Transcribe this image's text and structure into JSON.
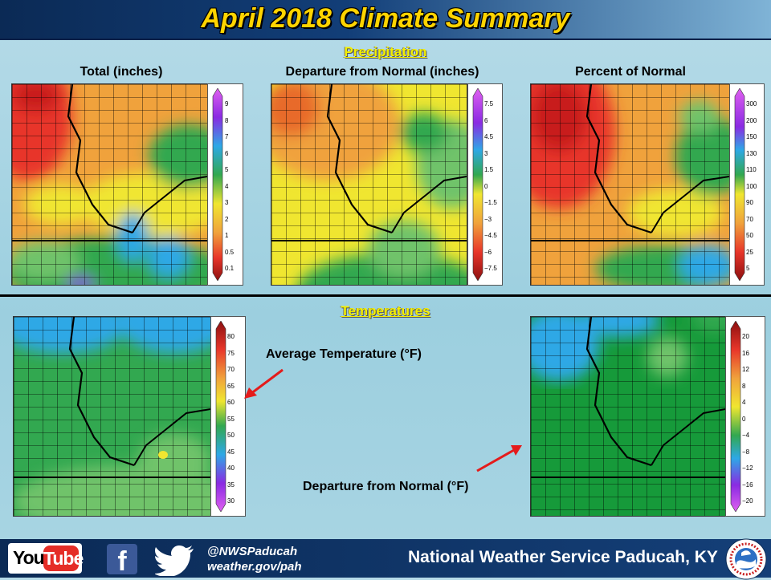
{
  "title": "April 2018 Climate Summary",
  "sections": {
    "precipitation": "Precipitation",
    "temperatures": "Temperatures"
  },
  "precip_panels": [
    {
      "label": "Total (inches)",
      "legend": [
        "9",
        "8",
        "7",
        "6",
        "5",
        "4",
        "3",
        "2",
        "1",
        "0.5",
        "0.1"
      ]
    },
    {
      "label": "Departure from Normal (inches)",
      "legend": [
        "7.5",
        "6",
        "4.5",
        "3",
        "1.5",
        "0",
        "−1.5",
        "−3",
        "−4.5",
        "−6",
        "−7.5"
      ]
    },
    {
      "label": "Percent of Normal",
      "legend": [
        "300",
        "200",
        "150",
        "130",
        "110",
        "100",
        "90",
        "70",
        "50",
        "25",
        "5"
      ]
    }
  ],
  "temp_panels": [
    {
      "label": "Average Temperature (°F)",
      "legend": [
        "80",
        "75",
        "70",
        "65",
        "60",
        "55",
        "50",
        "45",
        "40",
        "35",
        "30"
      ]
    },
    {
      "label": "Departure from Normal (°F)",
      "legend": [
        "20",
        "16",
        "12",
        "8",
        "4",
        "0",
        "−4",
        "−8",
        "−12",
        "−16",
        "−20"
      ]
    }
  ],
  "footer": {
    "youtube_you": "You",
    "youtube_tube": "Tube",
    "handle": "@NWSPaducah",
    "website": "weather.gov/pah",
    "office": "National Weather Service Paducah, KY"
  },
  "colors": {
    "title": "#ffd400",
    "section": "#f4f000",
    "brown": "#c81e1e",
    "red": "#e8362a",
    "orange": "#f0a23c",
    "yellow": "#f0e630",
    "green": "#32a850",
    "light_green": "#6fc36a",
    "blue": "#2ea8e6",
    "purple": "#8a2be2"
  },
  "icons": [
    "youtube-icon",
    "facebook-icon",
    "twitter-icon",
    "nws-logo-icon",
    "arrow-icon"
  ]
}
